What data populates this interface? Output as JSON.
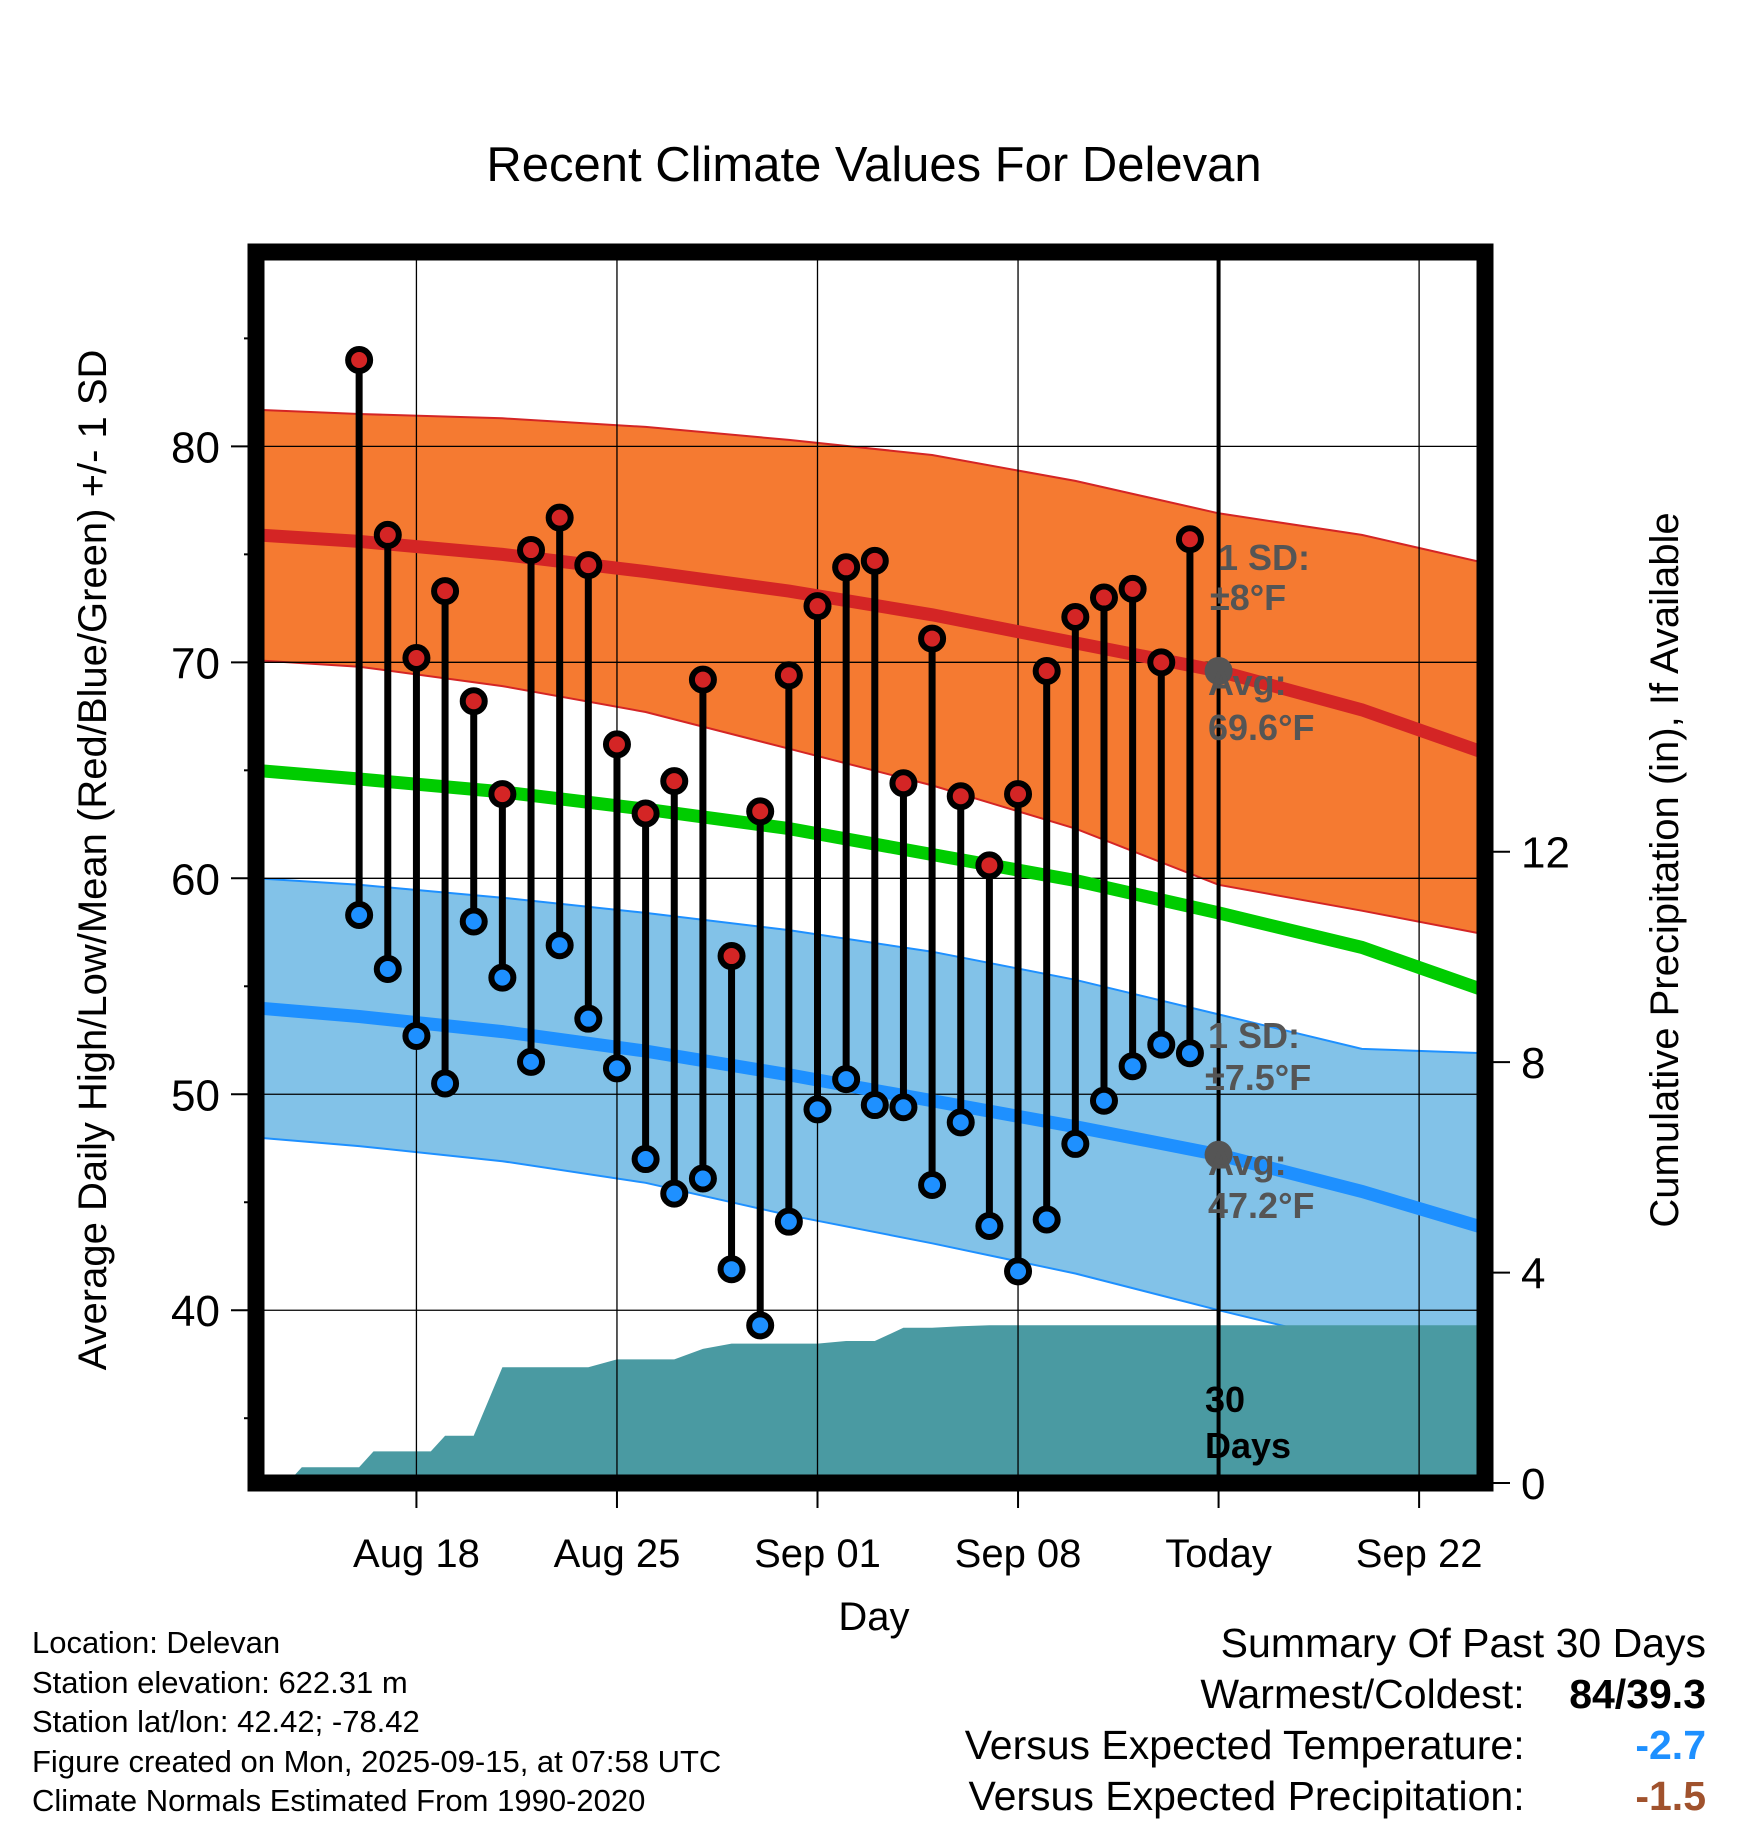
{
  "chart_data": {
    "type": "line",
    "title": "Recent Climate Values For Delevan",
    "xlabel": "Day",
    "ylabel": "Average Daily High/Low/Mean (Red/Blue/Green) +/- 1 SD",
    "ylabel_right": "Cumulative Precipitation (in), If Available",
    "ylim": [
      32,
      89
    ],
    "ylim_right": [
      0,
      23.4
    ],
    "x_range_days": [
      -33.6,
      9.3
    ],
    "yticks": [
      "40",
      "50",
      "60",
      "70",
      "80"
    ],
    "yticks_right": [
      "0",
      "4",
      "8",
      "12"
    ],
    "xticks": [
      {
        "day": -28,
        "label": "Aug 18"
      },
      {
        "day": -21,
        "label": "Aug 25"
      },
      {
        "day": -14,
        "label": "Sep 01"
      },
      {
        "day": -7,
        "label": "Sep 08"
      },
      {
        "day": 0,
        "label": "Today"
      },
      {
        "day": 7,
        "label": "Sep 22"
      }
    ],
    "today_label": "30 Days",
    "normals": {
      "day": [
        -33.6,
        -30,
        -25,
        -20,
        -15,
        -10,
        -5,
        0,
        5,
        9.3
      ],
      "high_mean": [
        75.9,
        75.6,
        75.0,
        74.2,
        73.3,
        72.2,
        70.9,
        69.6,
        67.8,
        65.8
      ],
      "high_upper": [
        81.7,
        81.5,
        81.3,
        80.9,
        80.3,
        79.6,
        78.4,
        76.9,
        75.9,
        74.6
      ],
      "high_lower": [
        70.1,
        69.8,
        68.9,
        67.7,
        66.0,
        64.3,
        62.3,
        59.7,
        58.5,
        57.4
      ],
      "mean": [
        65.0,
        64.6,
        64.0,
        63.2,
        62.3,
        61.1,
        59.9,
        58.4,
        56.8,
        54.8
      ],
      "low_mean": [
        54.0,
        53.6,
        52.9,
        52.0,
        50.9,
        49.7,
        48.5,
        47.2,
        45.5,
        43.8
      ],
      "low_upper": [
        60.0,
        59.7,
        59.1,
        58.4,
        57.6,
        56.6,
        55.3,
        53.7,
        52.1,
        51.9
      ],
      "low_lower": [
        48.0,
        47.6,
        46.9,
        45.9,
        44.4,
        43.1,
        41.7,
        40.0,
        38.4,
        36.8
      ]
    },
    "high_sd_label": "1 SD:",
    "high_sd_value": "±8°F",
    "high_avg_label": "Avg:",
    "high_avg_value": "69.6°F",
    "low_sd_label": "1 SD:",
    "low_sd_value": "±7.5°F",
    "low_avg_label": "Avg:",
    "low_avg_value": "47.2°F",
    "daily": {
      "day": [
        -30,
        -29,
        -28,
        -27,
        -26,
        -25,
        -24,
        -23,
        -22,
        -21,
        -20,
        -19,
        -18,
        -17,
        -16,
        -15,
        -14,
        -13,
        -12,
        -11,
        -10,
        -9,
        -8,
        -7,
        -6,
        -5,
        -4,
        -3,
        -2,
        -1
      ],
      "high": [
        84.0,
        75.9,
        70.2,
        73.3,
        68.2,
        63.9,
        75.2,
        76.7,
        74.5,
        66.2,
        63.0,
        64.5,
        69.2,
        56.4,
        63.1,
        69.4,
        72.6,
        74.4,
        74.7,
        64.4,
        71.1,
        63.8,
        60.6,
        63.9,
        69.6,
        72.1,
        73.0,
        73.4,
        70.0,
        75.7
      ],
      "low": [
        58.3,
        55.8,
        52.7,
        50.5,
        58.0,
        55.4,
        51.5,
        56.9,
        53.5,
        51.2,
        47.0,
        45.4,
        46.1,
        41.9,
        39.3,
        44.1,
        49.3,
        50.7,
        49.5,
        49.4,
        45.8,
        48.7,
        43.9,
        41.8,
        44.2,
        47.7,
        49.7,
        51.3,
        52.3,
        51.9
      ]
    },
    "precip": {
      "day": [
        -32.5,
        -32.0,
        -31.0,
        -30.0,
        -29.5,
        -28.5,
        -28.0,
        -27.5,
        -27.0,
        -26.0,
        -25.0,
        -24.0,
        -23.0,
        -22.0,
        -21.0,
        -20.0,
        -19.0,
        -18.0,
        -17.0,
        -16.0,
        -15.0,
        -14.0,
        -13.0,
        -12.0,
        -11.0,
        -10.0,
        -9.0,
        -8.0,
        -7.0,
        -6.0,
        -5.0,
        0.0,
        9.3
      ],
      "cumulative": [
        0.0,
        0.3,
        0.3,
        0.3,
        0.6,
        0.6,
        0.6,
        0.6,
        0.9,
        0.9,
        2.2,
        2.2,
        2.2,
        2.2,
        2.35,
        2.35,
        2.35,
        2.55,
        2.65,
        2.65,
        2.65,
        2.65,
        2.7,
        2.7,
        2.95,
        2.95,
        2.98,
        3.0,
        3.0,
        3.0,
        3.0,
        3.0,
        3.0
      ]
    }
  },
  "footer": {
    "location": "Location: Delevan",
    "elevation": "Station elevation: 622.31 m",
    "latlon": "Station lat/lon: 42.42; -78.42",
    "created": "Figure created on Mon, 2025-09-15, at 07:58 UTC",
    "normals": "Climate Normals Estimated From 1990-2020"
  },
  "summary": {
    "title": "Summary Of Past 30 Days",
    "warmest_label": "Warmest/Coldest:",
    "warmest_value": "84/39.3",
    "temp_label": "Versus Expected Temperature:",
    "temp_value": "-2.7",
    "temp_color": "#1e90ff",
    "precip_label": "Versus Expected Precipitation:",
    "precip_value": "-1.5",
    "precip_color": "#a0522d"
  },
  "colors": {
    "high_band": "#f57a31",
    "high_line": "#d42525",
    "high_edge": "#d42525",
    "low_band": "#82c2e8",
    "low_line": "#1e90ff",
    "low_edge": "#1e90ff",
    "mean_line": "#00cc00",
    "precip": "#4a9aa2",
    "annotation": "#555555",
    "avg_dot": "#555555"
  }
}
